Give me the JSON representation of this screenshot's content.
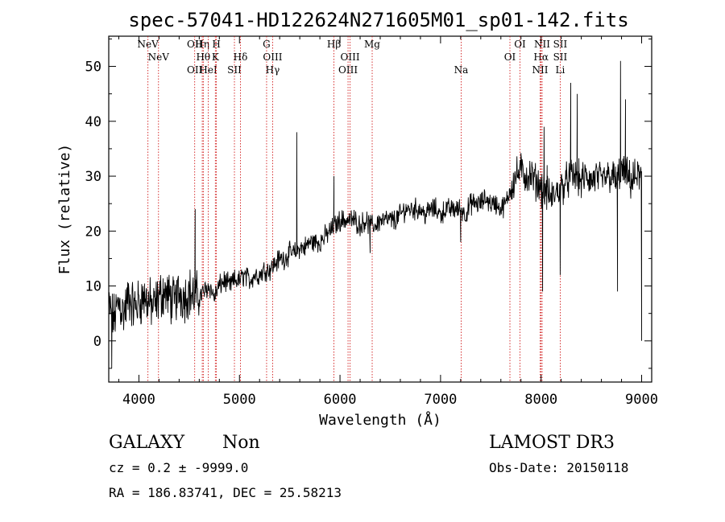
{
  "title": "spec-57041-HD122624N271605M01_sp01-142.fits",
  "footer": {
    "class_label": "GALAXY",
    "subclass_label": "Non",
    "survey": "LAMOST DR3",
    "cz_line": "cz = 0.2 ± -9999.0",
    "obs_date": "Obs-Date: 20150118",
    "radec_line": "RA = 186.83741, DEC =  25.58213"
  },
  "colors": {
    "spectrum": "#000000",
    "line_marker": "#cc0000",
    "axes": "#000000"
  },
  "chart_data": {
    "type": "line",
    "title": "spec-57041-HD122624N271605M01_sp01-142.fits",
    "xlabel": "Wavelength (Å)",
    "ylabel": "Flux (relative)",
    "xlim": [
      3700,
      9100
    ],
    "ylim": [
      -7.5,
      55.5
    ],
    "x_ticks": [
      4000,
      5000,
      6000,
      7000,
      8000,
      9000
    ],
    "x_tick_labels": [
      "4000",
      "5000",
      "6000",
      "7000",
      "8000",
      "9000"
    ],
    "y_ticks": [
      0,
      10,
      20,
      30,
      40,
      50
    ],
    "y_tick_labels": [
      "0",
      "10",
      "20",
      "30",
      "40",
      "50"
    ],
    "grid": false,
    "legend": "none",
    "spectrum_profile": [
      [
        3700,
        6
      ],
      [
        3750,
        4
      ],
      [
        3800,
        7
      ],
      [
        3850,
        5
      ],
      [
        3900,
        8
      ],
      [
        3950,
        6
      ],
      [
        4000,
        7
      ],
      [
        4050,
        8
      ],
      [
        4100,
        7
      ],
      [
        4150,
        6
      ],
      [
        4200,
        8
      ],
      [
        4250,
        9
      ],
      [
        4300,
        8
      ],
      [
        4350,
        7
      ],
      [
        4400,
        9
      ],
      [
        4450,
        8
      ],
      [
        4500,
        9
      ],
      [
        4550,
        8
      ],
      [
        4600,
        8
      ],
      [
        4650,
        9
      ],
      [
        4700,
        10
      ],
      [
        4750,
        8
      ],
      [
        4800,
        10
      ],
      [
        4850,
        11
      ],
      [
        4900,
        10
      ],
      [
        4950,
        11
      ],
      [
        5000,
        11
      ],
      [
        5050,
        12
      ],
      [
        5100,
        11
      ],
      [
        5150,
        12
      ],
      [
        5200,
        12
      ],
      [
        5250,
        13
      ],
      [
        5300,
        13
      ],
      [
        5350,
        14
      ],
      [
        5400,
        15
      ],
      [
        5450,
        15
      ],
      [
        5500,
        16
      ],
      [
        5550,
        16
      ],
      [
        5600,
        17
      ],
      [
        5650,
        17
      ],
      [
        5700,
        18
      ],
      [
        5750,
        18
      ],
      [
        5800,
        18
      ],
      [
        5850,
        19
      ],
      [
        5900,
        20
      ],
      [
        5950,
        21
      ],
      [
        6000,
        22
      ],
      [
        6050,
        22
      ],
      [
        6100,
        22
      ],
      [
        6150,
        22
      ],
      [
        6200,
        21
      ],
      [
        6250,
        22
      ],
      [
        6300,
        21
      ],
      [
        6350,
        21
      ],
      [
        6400,
        22
      ],
      [
        6450,
        22
      ],
      [
        6500,
        22
      ],
      [
        6550,
        22
      ],
      [
        6600,
        23
      ],
      [
        6650,
        24
      ],
      [
        6700,
        24
      ],
      [
        6750,
        24
      ],
      [
        6800,
        24
      ],
      [
        6850,
        23
      ],
      [
        6900,
        24
      ],
      [
        6950,
        24
      ],
      [
        7000,
        23
      ],
      [
        7050,
        24
      ],
      [
        7100,
        24
      ],
      [
        7150,
        24
      ],
      [
        7200,
        24
      ],
      [
        7250,
        23
      ],
      [
        7300,
        25
      ],
      [
        7350,
        25
      ],
      [
        7400,
        25
      ],
      [
        7450,
        26
      ],
      [
        7500,
        25
      ],
      [
        7550,
        25
      ],
      [
        7600,
        24
      ],
      [
        7650,
        25
      ],
      [
        7700,
        28
      ],
      [
        7750,
        30
      ],
      [
        7800,
        31
      ],
      [
        7850,
        30
      ],
      [
        7900,
        30
      ],
      [
        7950,
        29
      ],
      [
        8000,
        28
      ],
      [
        8050,
        27
      ],
      [
        8100,
        26
      ],
      [
        8150,
        27
      ],
      [
        8200,
        28
      ],
      [
        8250,
        29
      ],
      [
        8300,
        30
      ],
      [
        8350,
        30
      ],
      [
        8400,
        29
      ],
      [
        8450,
        30
      ],
      [
        8500,
        29
      ],
      [
        8550,
        30
      ],
      [
        8600,
        29
      ],
      [
        8650,
        30
      ],
      [
        8700,
        30
      ],
      [
        8750,
        29
      ],
      [
        8800,
        31
      ],
      [
        8850,
        30
      ],
      [
        8900,
        29
      ],
      [
        8950,
        30
      ],
      [
        9000,
        30
      ]
    ],
    "spectrum_features": [
      [
        3730,
        -5
      ],
      [
        4560,
        24
      ],
      [
        5570,
        38
      ],
      [
        5940,
        30
      ],
      [
        6300,
        16
      ],
      [
        7200,
        18
      ],
      [
        8015,
        9
      ],
      [
        8030,
        39
      ],
      [
        8060,
        32
      ],
      [
        8190,
        12
      ],
      [
        8295,
        47
      ],
      [
        8360,
        45
      ],
      [
        8760,
        9
      ],
      [
        8790,
        51
      ],
      [
        8840,
        44
      ],
      [
        9000,
        0
      ]
    ],
    "line_markers": [
      {
        "label": "NeV",
        "wavelength": 4090,
        "row": 1
      },
      {
        "label": "NeV",
        "wavelength": 4195,
        "row": 2
      },
      {
        "label": "OII",
        "wavelength": 4555,
        "row": 1
      },
      {
        "label": "OII",
        "wavelength": 4555,
        "row": 3
      },
      {
        "label": "Hη",
        "wavelength": 4630,
        "row": 1
      },
      {
        "label": "Hθ",
        "wavelength": 4640,
        "row": 2
      },
      {
        "label": "HeI",
        "wavelength": 4690,
        "row": 3
      },
      {
        "label": "H",
        "wavelength": 4770,
        "row": 1
      },
      {
        "label": "K",
        "wavelength": 4760,
        "row": 2
      },
      {
        "label": "SII",
        "wavelength": 4950,
        "row": 3
      },
      {
        "label": "Hδ",
        "wavelength": 5010,
        "row": 2
      },
      {
        "label": "G",
        "wavelength": 5270,
        "row": 1
      },
      {
        "label": "OIII",
        "wavelength": 5330,
        "row": 2
      },
      {
        "label": "Hγ",
        "wavelength": 5330,
        "row": 3
      },
      {
        "label": "Hβ",
        "wavelength": 5940,
        "row": 1
      },
      {
        "label": "OIII",
        "wavelength": 6100,
        "row": 2
      },
      {
        "label": "OIII",
        "wavelength": 6080,
        "row": 3
      },
      {
        "label": "Mg",
        "wavelength": 6320,
        "row": 1
      },
      {
        "label": "Na",
        "wavelength": 7205,
        "row": 3
      },
      {
        "label": "OI",
        "wavelength": 7790,
        "row": 1
      },
      {
        "label": "OI",
        "wavelength": 7690,
        "row": 2
      },
      {
        "label": "NII",
        "wavelength": 8010,
        "row": 1
      },
      {
        "label": "Hα",
        "wavelength": 8000,
        "row": 2
      },
      {
        "label": "NII",
        "wavelength": 7990,
        "row": 3
      },
      {
        "label": "SII",
        "wavelength": 8190,
        "row": 1
      },
      {
        "label": "SII",
        "wavelength": 8190,
        "row": 2
      },
      {
        "label": "Li",
        "wavelength": 8190,
        "row": 3
      }
    ]
  }
}
